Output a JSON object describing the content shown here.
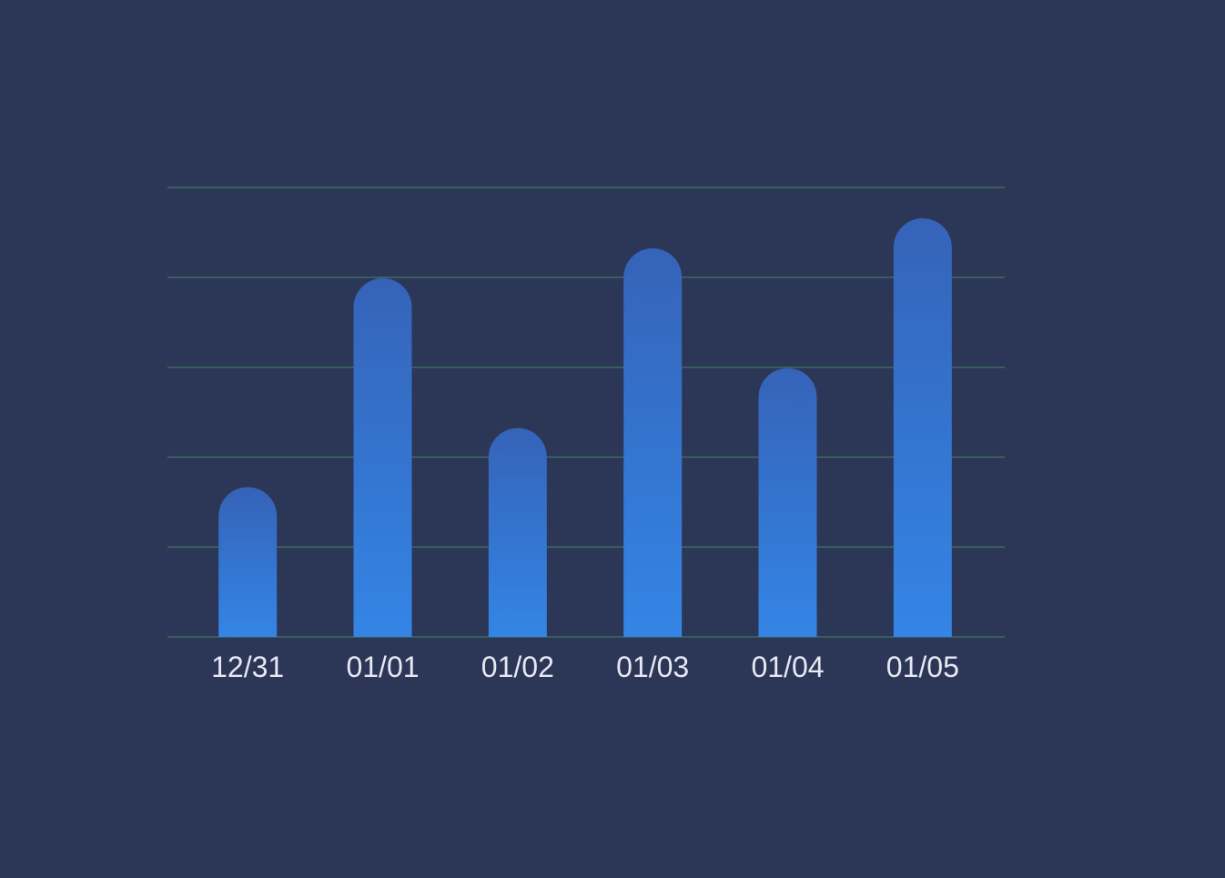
{
  "colors": {
    "background": "#2c3657",
    "gridline": "#3f6b5f",
    "bar_top": "#3563b8",
    "bar_bottom": "#3485e6",
    "tick_label": "#e6e9f2"
  },
  "chart_data": {
    "type": "bar",
    "categories": [
      "12/31",
      "01/01",
      "01/02",
      "01/03",
      "01/04",
      "01/05"
    ],
    "values": [
      165,
      395,
      230,
      428,
      296,
      461
    ],
    "ylim": [
      0,
      495
    ],
    "y_ticks": [
      0,
      99,
      198,
      297,
      396,
      495
    ],
    "grid": true,
    "bar_style": "rounded-top",
    "y_tick_labels_visible": false
  }
}
